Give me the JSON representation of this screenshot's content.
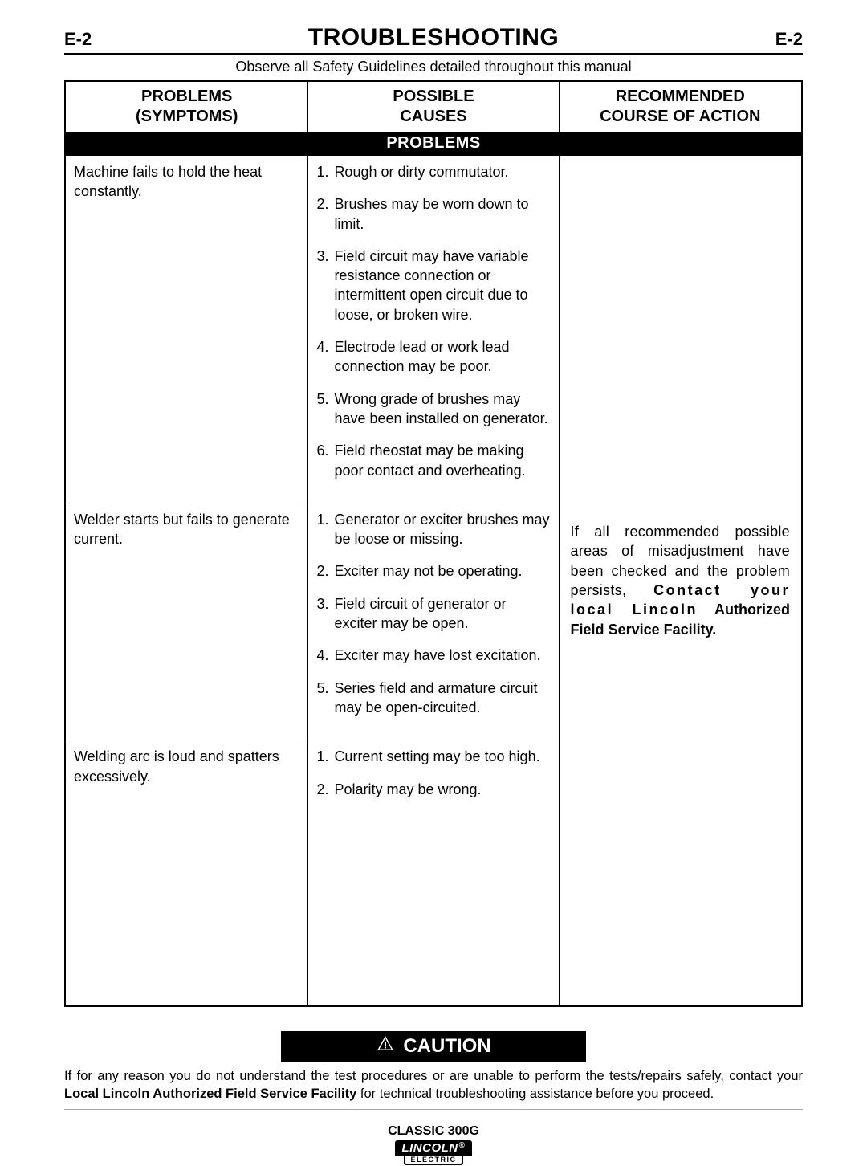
{
  "header": {
    "page_code": "E-2",
    "title": "TROUBLESHOOTING",
    "safety_note": "Observe all Safety Guidelines detailed throughout this manual"
  },
  "columns": {
    "problems": "PROBLEMS\n(SYMPTOMS)",
    "causes": "POSSIBLE\nCAUSES",
    "action": "RECOMMENDED\nCOURSE OF ACTION"
  },
  "section_label": "PROBLEMS",
  "rows": [
    {
      "symptom": "Machine fails to hold the heat constantly.",
      "causes": [
        "Rough or dirty commutator.",
        "Brushes may be worn down to limit.",
        "Field circuit may have variable resistance connection or intermittent open circuit due to loose, or broken wire.",
        "Electrode lead or work lead connection may be poor.",
        "Wrong grade of brushes may have been installed on generator.",
        "Field rheostat may be making poor contact and overheating."
      ]
    },
    {
      "symptom": "Welder starts but fails to generate current.",
      "causes": [
        "Generator or exciter brushes may be loose or missing.",
        "Exciter may not be operating.",
        "Field circuit of generator or exciter may be open.",
        "Exciter may have lost excitation.",
        "Series field and armature circuit may be open-circuited."
      ]
    },
    {
      "symptom": "Welding arc is loud and spatters excessively.",
      "causes": [
        "Current setting may be too high.",
        "Polarity may be wrong."
      ]
    }
  ],
  "action": {
    "line1": "If all recommended possible areas of misadjustment have been checked and the problem persists,",
    "bold1": "Contact your local Lincoln",
    "bold2": "Authorized Field Service Facility."
  },
  "caution": {
    "label": "CAUTION",
    "text1": "If for any reason you do not understand the test procedures or are unable to perform the tests/repairs safely, contact your ",
    "bold": "Local  Lincoln Authorized Field Service Facility",
    "text2": " for technical troubleshooting assistance before you proceed."
  },
  "footer": {
    "product": "CLASSIC 300G",
    "logo_top": "LINCOLN",
    "logo_bottom": "ELECTRIC"
  }
}
